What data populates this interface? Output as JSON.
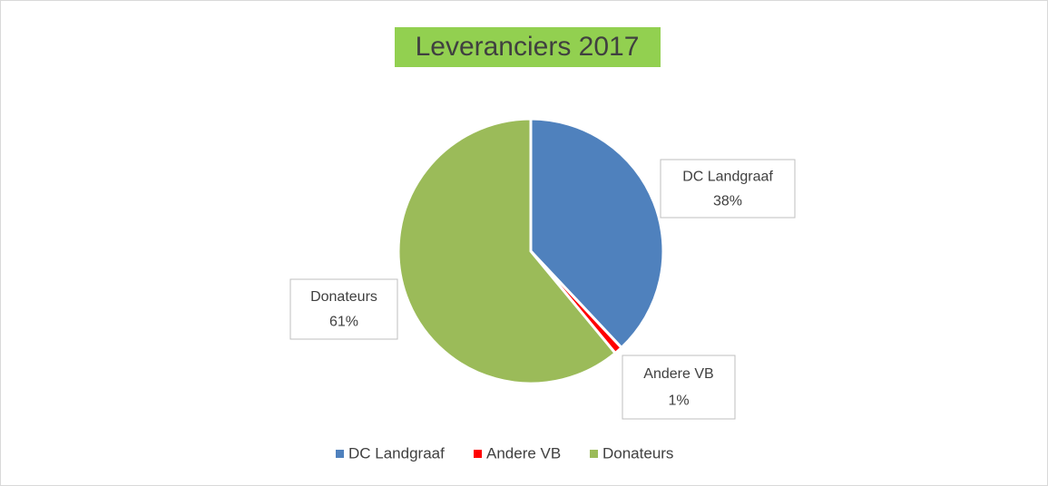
{
  "chart_data": {
    "type": "pie",
    "title": "Leveranciers 2017",
    "categories": [
      "DC Landgraaf",
      "Andere VB",
      "Donateurs"
    ],
    "values": [
      38,
      1,
      61
    ],
    "value_labels": [
      "38%",
      "1%",
      "61%"
    ],
    "colors": [
      "#4f81bd",
      "#ff0000",
      "#9bbb59"
    ],
    "legend": "bottom"
  }
}
